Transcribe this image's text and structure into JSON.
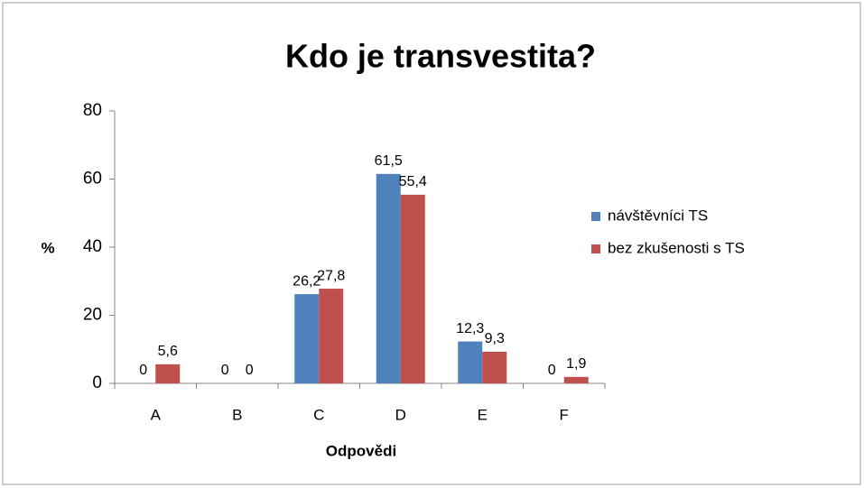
{
  "chart_data": {
    "type": "bar",
    "title": "Kdo je transvestita?",
    "x_label": "Odpovědi",
    "y_label": "%",
    "categories": [
      "A",
      "B",
      "C",
      "D",
      "E",
      "F"
    ],
    "series": [
      {
        "name": "návštěvníci TS",
        "color": "#4f81bd",
        "values": [
          0,
          0,
          26.2,
          61.5,
          12.3,
          0
        ],
        "value_labels": [
          "0",
          "0",
          "26,2",
          "61,5",
          "12,3",
          "0"
        ]
      },
      {
        "name": "bez zkušenosti s TS",
        "color": "#c0504d",
        "values": [
          5.6,
          0,
          27.8,
          55.4,
          9.3,
          1.9
        ],
        "value_labels": [
          "5,6",
          "0",
          "27,8",
          "55,4",
          "9,3",
          "1,9"
        ]
      }
    ],
    "ylim": [
      0,
      80
    ],
    "yticks": [
      0,
      20,
      40,
      60,
      80
    ],
    "legend": "right"
  }
}
